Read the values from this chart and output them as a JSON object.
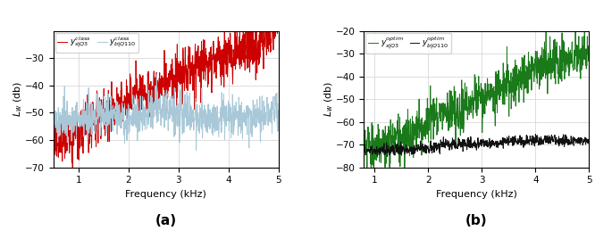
{
  "panel_a": {
    "title": "(a)",
    "xlabel": "Frequency (kHz)",
    "ylabel": "$L_w$ (db)",
    "xlim": [
      0.5,
      5.0
    ],
    "ylim": [
      -70,
      -20
    ],
    "yticks": [
      -70,
      -60,
      -50,
      -40,
      -30
    ],
    "xticks": [
      1,
      2,
      3,
      4,
      5
    ],
    "line1_color": "#cc0000",
    "line1_label": "$y^{class}_{s|Q3}$",
    "line2_color": "#a8c8d8",
    "line2_label": "$y^{class}_{b|Q110}$"
  },
  "panel_b": {
    "title": "(b)",
    "xlabel": "Frequency (kHz)",
    "ylabel": "$L_w$ (db)",
    "xlim": [
      0.8,
      5.0
    ],
    "ylim": [
      -80,
      -20
    ],
    "yticks": [
      -80,
      -70,
      -60,
      -50,
      -40,
      -30,
      -20
    ],
    "xticks": [
      1,
      2,
      3,
      4,
      5
    ],
    "line1_color": "#1a7a1a",
    "line1_label": "$y^{optim}_{s|Q3}$",
    "line2_color": "#111111",
    "line2_label": "$y^{optim}_{b|Q110}$"
  },
  "fig_background": "#ffffff",
  "grid_color": "#d0d0d0",
  "seed": 42
}
